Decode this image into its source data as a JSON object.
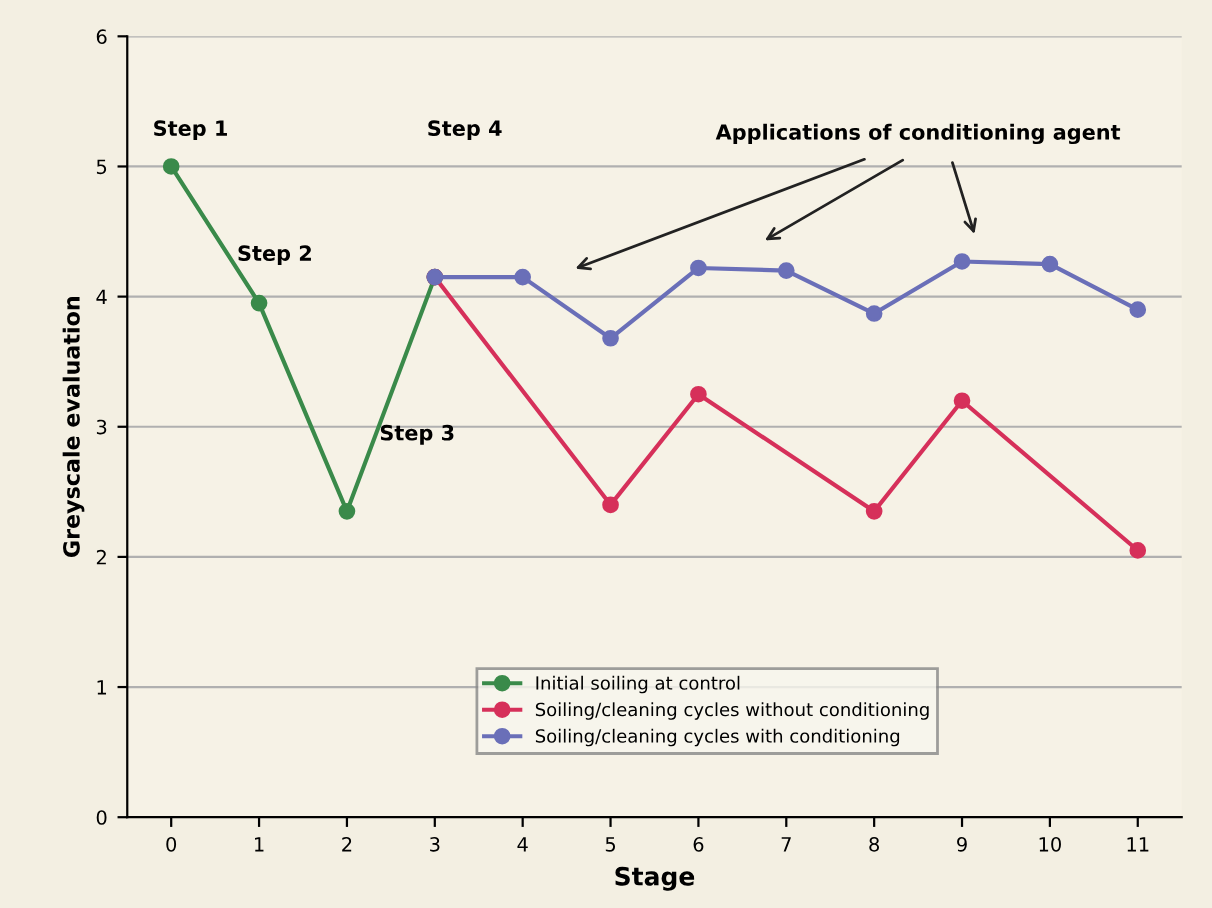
{
  "chart_data": {
    "type": "line",
    "xlabel": "Stage",
    "ylabel": "Greyscale evaluation",
    "xlim": [
      -0.5,
      11.5
    ],
    "xticks": [
      0,
      1,
      2,
      3,
      4,
      5,
      6,
      7,
      8,
      9,
      10,
      11
    ],
    "ylim": [
      0,
      6
    ],
    "yticks": [
      0,
      1,
      2,
      3,
      4,
      5,
      6
    ],
    "series": [
      {
        "name": "Initial soiling at control",
        "color": "#3a8a4a",
        "x": [
          0,
          1,
          2,
          3
        ],
        "values": [
          5,
          3.95,
          2.35,
          4.15
        ]
      },
      {
        "name": "Soiling/cleaning cycles without conditioning",
        "color": "#d6305a",
        "x": [
          3,
          5,
          6,
          8,
          9,
          11
        ],
        "values": [
          4.15,
          2.4,
          3.25,
          2.35,
          3.2,
          2.05
        ]
      },
      {
        "name": "Soiling/cleaning cycles with conditioning",
        "color": "#6a6fb8",
        "x": [
          3,
          4,
          5,
          6,
          7,
          8,
          9,
          10,
          11
        ],
        "values": [
          4.15,
          4.15,
          3.68,
          4.22,
          4.2,
          3.87,
          4.27,
          4.25,
          3.9
        ]
      }
    ],
    "annotations": [
      "Step 1",
      "Step 2",
      "Step 3",
      "Step 4",
      "Applications of conditioning agent"
    ],
    "grid": "y",
    "legend": "bottom",
    "marker": "circle",
    "line_style": "solid"
  }
}
